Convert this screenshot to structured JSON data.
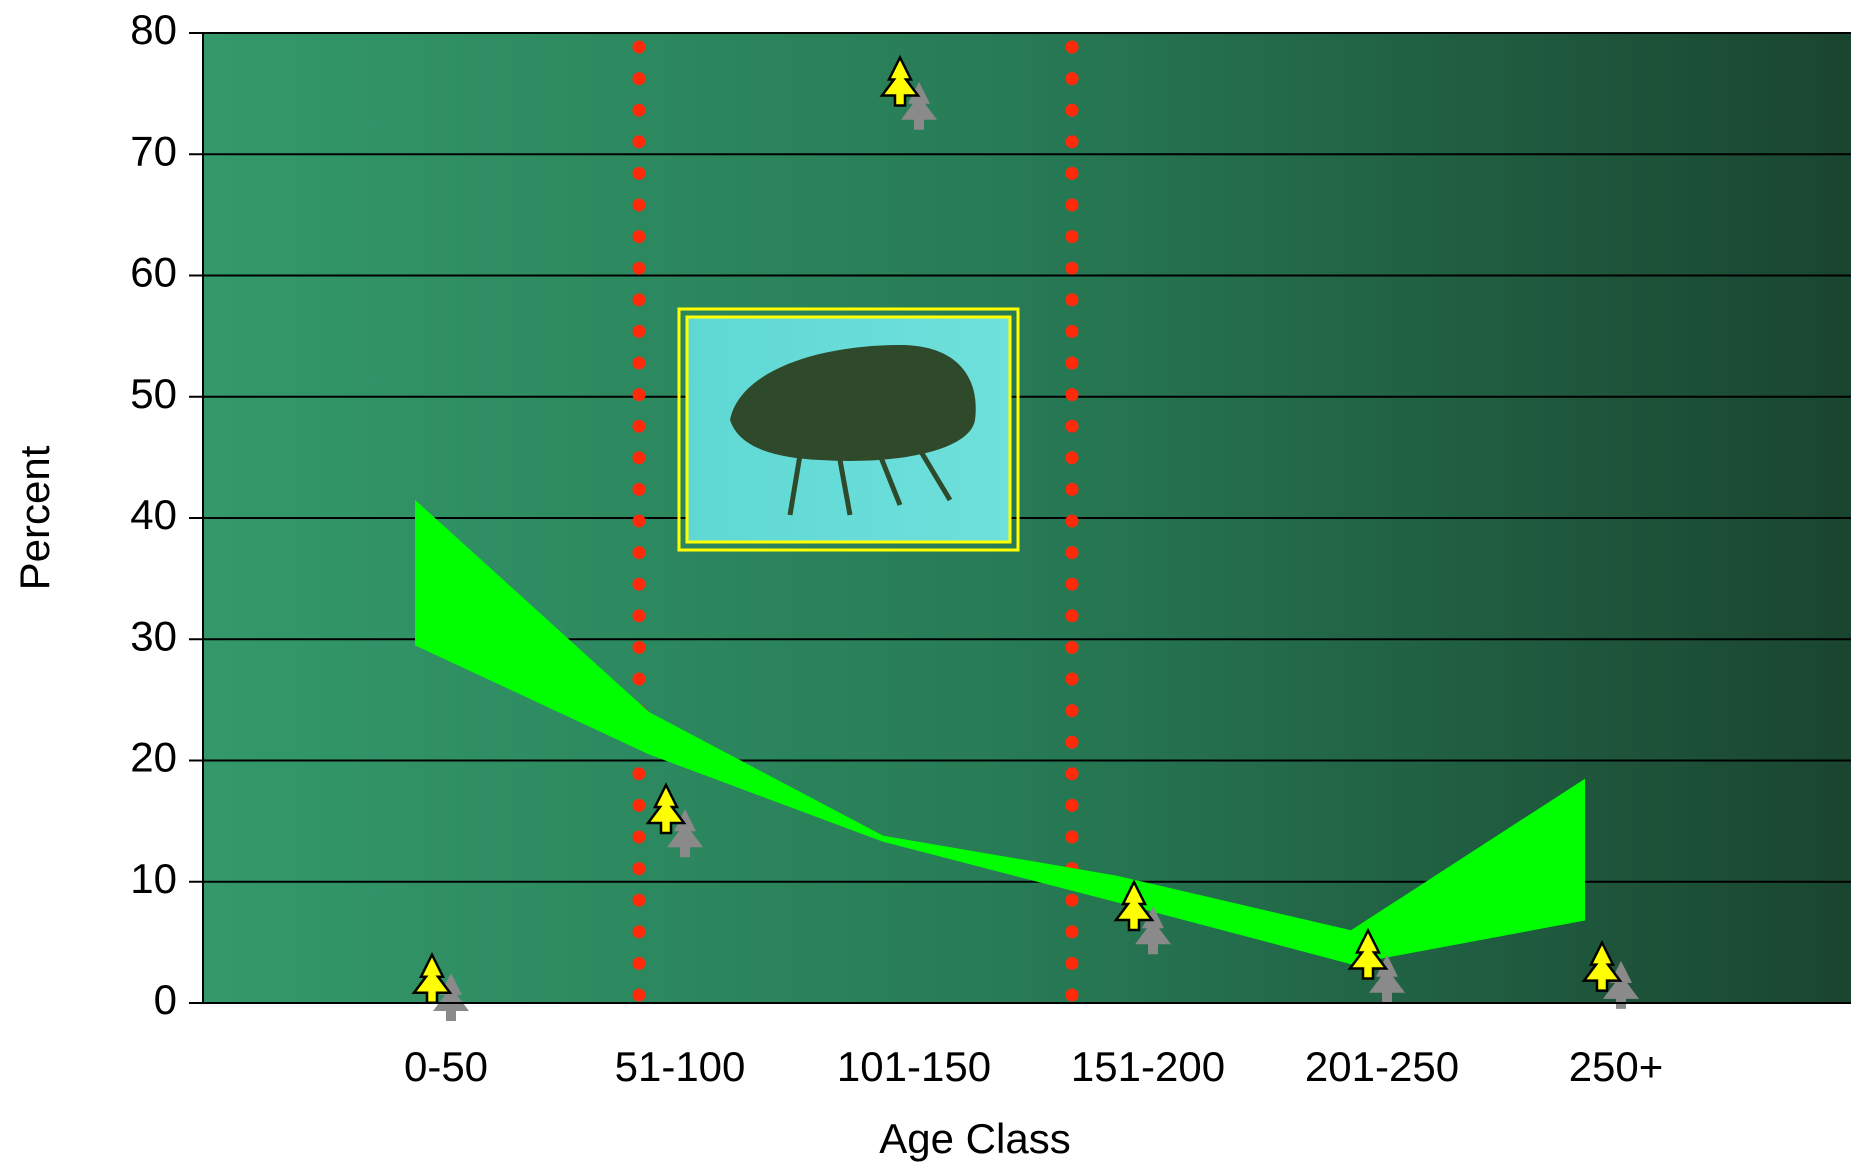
{
  "chart_data": {
    "type": "range-area",
    "x_label": "Age Class",
    "y_label": "Percent",
    "categories": [
      "0-50",
      "51-100",
      "101-150",
      "151-200",
      "201-250",
      "250+"
    ],
    "band_low": [
      29.5,
      20.5,
      13.3,
      8.3,
      3.2,
      6.8
    ],
    "band_high": [
      41.5,
      24,
      13.8,
      10.5,
      6,
      18.5
    ],
    "band_color": "#00ff00",
    "yellow_markers": [
      2,
      16,
      76,
      8,
      4,
      3
    ],
    "gray_markers": [
      0.5,
      14,
      74,
      6,
      2,
      1.5
    ],
    "yellow_color": "#ffff00",
    "gray_color": "#8a8a8a",
    "ylim": [
      0,
      80
    ],
    "yticks": [
      0,
      10,
      20,
      30,
      40,
      50,
      60,
      70,
      80
    ],
    "grid": true
  }
}
